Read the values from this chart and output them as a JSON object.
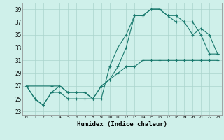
{
  "xlabel": "Humidex (Indice chaleur)",
  "bg_color": "#cff0ea",
  "grid_color": "#aad4cc",
  "line_color": "#1a7a6e",
  "xlim": [
    -0.5,
    23.5
  ],
  "ylim": [
    22.5,
    40
  ],
  "xticks": [
    0,
    1,
    2,
    3,
    4,
    5,
    6,
    7,
    8,
    9,
    10,
    11,
    12,
    13,
    14,
    15,
    16,
    17,
    18,
    19,
    20,
    21,
    22,
    23
  ],
  "yticks": [
    23,
    25,
    27,
    29,
    31,
    33,
    35,
    37,
    39
  ],
  "line1_x": [
    0,
    1,
    2,
    3,
    4,
    5,
    6,
    7,
    8,
    9,
    10,
    11,
    12,
    13,
    14,
    15,
    16,
    17,
    18,
    19,
    20,
    21,
    22,
    23
  ],
  "line1_y": [
    27,
    25,
    24,
    26,
    26,
    25,
    25,
    25,
    25,
    25,
    30,
    33,
    35,
    38,
    38,
    39,
    39,
    38,
    37,
    37,
    35,
    36,
    35,
    32
  ],
  "line2_x": [
    0,
    3,
    4,
    5,
    6,
    7,
    8,
    9,
    10,
    11,
    12,
    13,
    14,
    15,
    16,
    17,
    18,
    19,
    20,
    21,
    22,
    23
  ],
  "line2_y": [
    27,
    27,
    27,
    26,
    26,
    26,
    25,
    27,
    28,
    29,
    30,
    30,
    31,
    31,
    31,
    31,
    31,
    31,
    31,
    31,
    31,
    31
  ],
  "line3_x": [
    0,
    1,
    2,
    3,
    4,
    5,
    6,
    7,
    8,
    9,
    10,
    11,
    12,
    13,
    14,
    15,
    16,
    17,
    18,
    19,
    20,
    21,
    22,
    23
  ],
  "line3_y": [
    27,
    25,
    24,
    26,
    27,
    26,
    26,
    26,
    25,
    27,
    28,
    30,
    33,
    38,
    38,
    39,
    39,
    38,
    38,
    37,
    37,
    35,
    32,
    32
  ]
}
